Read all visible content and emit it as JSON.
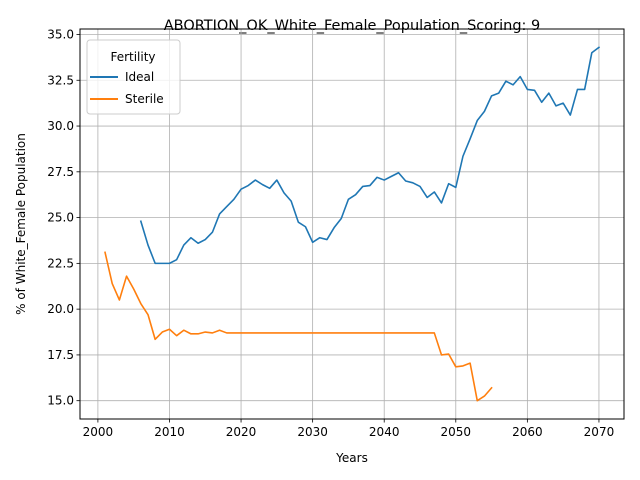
{
  "chart_data": {
    "type": "line",
    "title": "ABORTION_OK_White_Female_Population_Scoring: 9",
    "xlabel": "Years",
    "ylabel": "% of White_Female Population",
    "xlim": [
      1997.5,
      2073.5
    ],
    "ylim": [
      14.0,
      35.3
    ],
    "x_ticks": [
      2000,
      2010,
      2020,
      2030,
      2040,
      2050,
      2060,
      2070
    ],
    "y_ticks": [
      15.0,
      17.5,
      20.0,
      22.5,
      25.0,
      27.5,
      30.0,
      32.5,
      35.0
    ],
    "x_tick_labels": [
      "2000",
      "2010",
      "2020",
      "2030",
      "2040",
      "2050",
      "2060",
      "2070"
    ],
    "y_tick_labels": [
      "15.0",
      "17.5",
      "20.0",
      "22.5",
      "25.0",
      "27.5",
      "30.0",
      "32.5",
      "35.0"
    ],
    "grid": true,
    "legend": {
      "title": "Fertility",
      "placement": "top-left"
    },
    "series": [
      {
        "name": "Ideal",
        "color": "#1f77b4",
        "x": [
          2006,
          2007,
          2008,
          2009,
          2010,
          2011,
          2012,
          2013,
          2014,
          2015,
          2016,
          2017,
          2018,
          2019,
          2020,
          2021,
          2022,
          2023,
          2024,
          2025,
          2026,
          2027,
          2028,
          2029,
          2030,
          2031,
          2032,
          2033,
          2034,
          2035,
          2036,
          2037,
          2038,
          2039,
          2040,
          2041,
          2042,
          2043,
          2044,
          2045,
          2046,
          2047,
          2048,
          2049,
          2050,
          2051,
          2052,
          2053,
          2054,
          2055,
          2056,
          2057,
          2058,
          2059,
          2060,
          2061,
          2062,
          2063,
          2064,
          2065,
          2066,
          2067,
          2068,
          2069,
          2070
        ],
        "values": [
          24.8,
          23.5,
          22.5,
          22.5,
          22.5,
          22.7,
          23.5,
          23.9,
          23.6,
          23.8,
          24.2,
          25.2,
          25.6,
          26.0,
          26.55,
          26.75,
          27.05,
          26.8,
          26.6,
          27.05,
          26.35,
          25.9,
          24.75,
          24.5,
          23.65,
          23.9,
          23.8,
          24.45,
          24.95,
          26.0,
          26.25,
          26.7,
          26.75,
          27.2,
          27.05,
          27.25,
          27.45,
          27.0,
          26.9,
          26.7,
          26.1,
          26.4,
          25.8,
          26.85,
          26.65,
          28.35,
          29.3,
          30.3,
          30.8,
          31.65,
          31.8,
          32.45,
          32.25,
          32.7,
          32.0,
          31.95,
          31.3,
          31.8,
          31.1,
          31.25,
          30.6,
          32.0,
          32.0,
          34.0,
          34.3
        ]
      },
      {
        "name": "Sterile",
        "color": "#ff7f0e",
        "x": [
          2001,
          2002,
          2003,
          2004,
          2005,
          2006,
          2007,
          2008,
          2009,
          2010,
          2011,
          2012,
          2013,
          2014,
          2015,
          2016,
          2017,
          2018,
          2019,
          2020,
          2021,
          2022,
          2023,
          2024,
          2025,
          2026,
          2027,
          2028,
          2029,
          2030,
          2031,
          2032,
          2033,
          2034,
          2035,
          2036,
          2037,
          2038,
          2039,
          2040,
          2041,
          2042,
          2043,
          2044,
          2045,
          2046,
          2047,
          2048,
          2049,
          2050,
          2051,
          2052,
          2053,
          2054,
          2055
        ],
        "values": [
          23.1,
          21.4,
          20.5,
          21.8,
          21.1,
          20.3,
          19.7,
          18.35,
          18.75,
          18.9,
          18.55,
          18.85,
          18.65,
          18.65,
          18.75,
          18.7,
          18.85,
          18.7,
          18.7,
          18.7,
          18.7,
          18.7,
          18.7,
          18.7,
          18.7,
          18.7,
          18.7,
          18.7,
          18.7,
          18.7,
          18.7,
          18.7,
          18.7,
          18.7,
          18.7,
          18.7,
          18.7,
          18.7,
          18.7,
          18.7,
          18.7,
          18.7,
          18.7,
          18.7,
          18.7,
          18.7,
          18.7,
          17.5,
          17.55,
          16.85,
          16.9,
          17.05,
          15.0,
          15.25,
          15.7
        ]
      }
    ]
  }
}
